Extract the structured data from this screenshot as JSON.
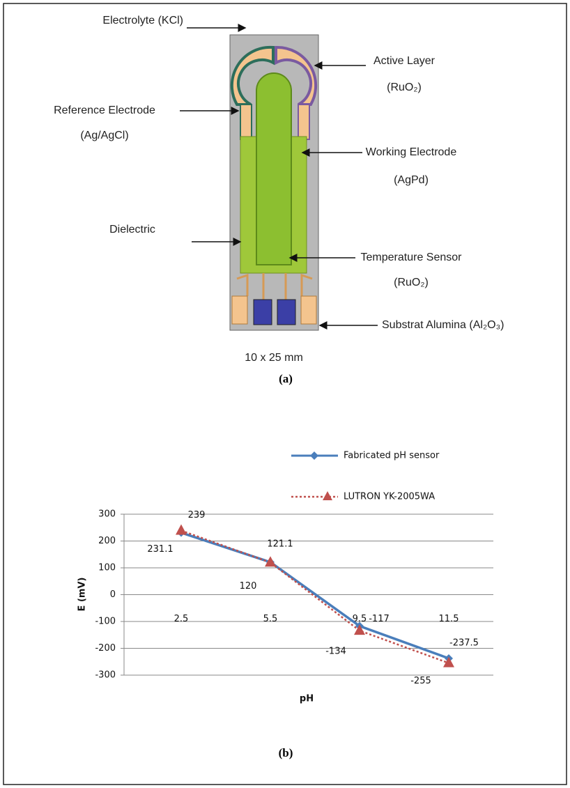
{
  "figure": {
    "diagram": {
      "labels": {
        "electrolyte": "Electrolyte (KCl)",
        "active_layer": [
          "Active Layer",
          "(RuO₂)"
        ],
        "reference_electrode": [
          "Reference Electrode",
          "(Ag/AgCl)"
        ],
        "working_electrode": [
          "Working Electrode",
          "(AgPd)"
        ],
        "dielectric": "Dielectric",
        "temperature_sensor": [
          "Temperature Sensor",
          "(RuO₂)"
        ],
        "substrate": "Substrat Alumina (Al₂O₃)",
        "dimensions": "10 x 25 mm"
      },
      "caption": "(a)"
    },
    "chart_caption": "(b)"
  },
  "chart_data": {
    "type": "line",
    "xlabel": "pH",
    "ylabel": "E (mV)",
    "categories": [
      "2.5",
      "5.5",
      "9.5",
      "11.5"
    ],
    "series": [
      {
        "name": "Fabricated pH sensor",
        "color": "#4a7ebb",
        "marker": "diamond",
        "dash": "solid",
        "values": [
          231.1,
          121.1,
          -117,
          -237.5
        ]
      },
      {
        "name": "LUTRON YK-2005WA",
        "color": "#c0504d",
        "marker": "triangle",
        "dash": "dotted",
        "values": [
          239,
          120,
          -134,
          -255
        ]
      }
    ],
    "ylim": [
      -300,
      300
    ],
    "yticks": [
      -300,
      -200,
      -100,
      0,
      100,
      200,
      300
    ],
    "grid": true,
    "legend": "top"
  }
}
